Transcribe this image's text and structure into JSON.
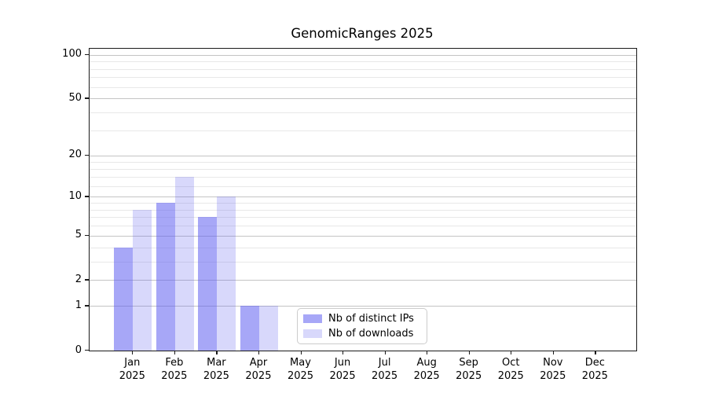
{
  "chart_data": {
    "type": "bar",
    "title": "GenomicRanges 2025",
    "year": "2025",
    "categories": [
      "Jan 2025",
      "Feb 2025",
      "Mar 2025",
      "Apr 2025",
      "May 2025",
      "Jun 2025",
      "Jul 2025",
      "Aug 2025",
      "Sep 2025",
      "Oct 2025",
      "Nov 2025",
      "Dec 2025"
    ],
    "months": [
      "Jan",
      "Feb",
      "Mar",
      "Apr",
      "May",
      "Jun",
      "Jul",
      "Aug",
      "Sep",
      "Oct",
      "Nov",
      "Dec"
    ],
    "series": [
      {
        "name": "Nb of distinct IPs",
        "color": "rgba(94,94,240,0.55)",
        "values": [
          4,
          9,
          7,
          1,
          0,
          0,
          0,
          0,
          0,
          0,
          0,
          0
        ]
      },
      {
        "name": "Nb of downloads",
        "color": "rgba(94,94,240,0.24)",
        "values": [
          8,
          14,
          10,
          1,
          0,
          0,
          0,
          0,
          0,
          0,
          0,
          0
        ]
      }
    ],
    "y_axis": {
      "scale": "log10(1+x)",
      "major_ticks": [
        0,
        1,
        2,
        5,
        10,
        20,
        50,
        100
      ],
      "minor_gridlines": [
        3,
        4,
        6,
        7,
        8,
        9,
        12,
        14,
        16,
        18,
        30,
        40,
        60,
        70,
        80,
        90
      ],
      "max": 110
    },
    "x_axis": {
      "tick_per_month": true
    },
    "legend": {
      "position": "lower-center",
      "border_color": "#cccccc"
    },
    "grid": true,
    "background": "#ffffff",
    "text_color": "#000000"
  }
}
